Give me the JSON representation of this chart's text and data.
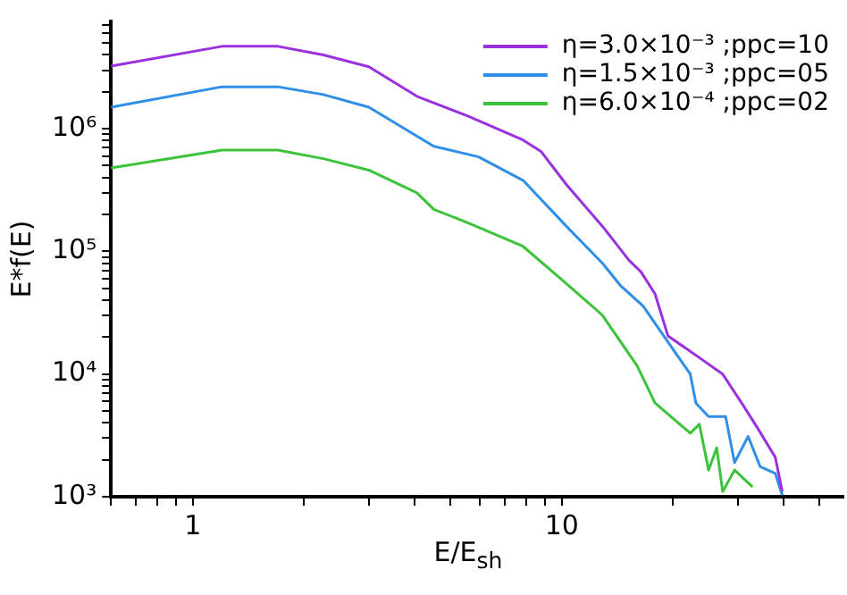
{
  "chart_data": {
    "type": "line",
    "xlabel": "E/E$_{sh}$",
    "ylabel": "E*f(E)",
    "log": "xy",
    "legend": "top right",
    "marker": "none",
    "line_style": "solid",
    "grid": false,
    "xlim": [
      0.6,
      58
    ],
    "ylim": [
      1000,
      7500000
    ],
    "xticks": [
      {
        "value": 0.6,
        "label": null
      },
      {
        "value": 0.7,
        "label": null
      },
      {
        "value": 0.8,
        "label": null
      },
      {
        "value": 0.9,
        "label": null
      },
      1,
      {
        "value": 2,
        "label": null
      },
      {
        "value": 3,
        "label": null
      },
      {
        "value": 4,
        "label": null
      },
      {
        "value": 5,
        "label": null
      },
      {
        "value": 6,
        "label": null
      },
      {
        "value": 7,
        "label": null
      },
      {
        "value": 8,
        "label": null
      },
      {
        "value": 9,
        "label": null
      },
      10,
      {
        "value": 20,
        "label": null
      },
      {
        "value": 30,
        "label": null
      },
      {
        "value": 40,
        "label": null
      },
      {
        "value": 50,
        "label": null
      }
    ],
    "yticks": [
      {
        "value": 1000,
        "label": "10³"
      },
      {
        "value": 2000,
        "label": null
      },
      {
        "value": 3000,
        "label": null
      },
      {
        "value": 4000,
        "label": null
      },
      {
        "value": 5000,
        "label": null
      },
      {
        "value": 6000,
        "label": null
      },
      {
        "value": 7000,
        "label": null
      },
      {
        "value": 8000,
        "label": null
      },
      {
        "value": 9000,
        "label": null
      },
      {
        "value": 10000,
        "label": "10⁴"
      },
      {
        "value": 20000,
        "label": null
      },
      {
        "value": 30000,
        "label": null
      },
      {
        "value": 40000,
        "label": null
      },
      {
        "value": 50000,
        "label": null
      },
      {
        "value": 60000,
        "label": null
      },
      {
        "value": 70000,
        "label": null
      },
      {
        "value": 80000,
        "label": null
      },
      {
        "value": 90000,
        "label": null
      },
      {
        "value": 100000,
        "label": "10⁵"
      },
      {
        "value": 200000,
        "label": null
      },
      {
        "value": 300000,
        "label": null
      },
      {
        "value": 400000,
        "label": null
      },
      {
        "value": 500000,
        "label": null
      },
      {
        "value": 600000,
        "label": null
      },
      {
        "value": 700000,
        "label": null
      },
      {
        "value": 800000,
        "label": null
      },
      {
        "value": 900000,
        "label": null
      },
      {
        "value": 1000000,
        "label": "10⁶"
      },
      {
        "value": 2000000,
        "label": null
      },
      {
        "value": 3000000,
        "label": null
      },
      {
        "value": 4000000,
        "label": null
      },
      {
        "value": 5000000,
        "label": null
      },
      {
        "value": 6000000,
        "label": null
      },
      {
        "value": 7000000,
        "label": null
      }
    ],
    "series": [
      {
        "name": "η=3.0×10⁻³ ;ppc=10",
        "color": "#9b30e0",
        "x": [
          0.6,
          1.2,
          1.7,
          2.26,
          3.0,
          4.05,
          5.6,
          7.85,
          8.8,
          10.3,
          12.9,
          15.2,
          16.4,
          17.9,
          19.4,
          23.6,
          27.3,
          31.1,
          34.0,
          37.9,
          39.6
        ],
        "values": [
          3240000,
          4700000,
          4700000,
          4000000,
          3200000,
          1840000,
          1260000,
          810000,
          650000,
          350000,
          160000,
          85000,
          68000,
          45000,
          20500,
          13600,
          10000,
          5500,
          3600,
          2100,
          1100
        ]
      },
      {
        "name": "η=1.5×10⁻³ ;ppc=05",
        "color": "#2f8fe8",
        "x": [
          0.6,
          1.2,
          1.7,
          2.26,
          3.0,
          4.5,
          5.95,
          7.85,
          10.3,
          12.9,
          14.4,
          16.6,
          20,
          22.3,
          23.1,
          25,
          27.8,
          29.4,
          32,
          34.5,
          37.9,
          39.6
        ],
        "values": [
          1500000,
          2200000,
          2200000,
          1900000,
          1500000,
          720000,
          590000,
          380000,
          160000,
          80000,
          53000,
          36000,
          16000,
          10000,
          5800,
          4500,
          4500,
          1900,
          3100,
          1760,
          1550,
          1030
        ]
      },
      {
        "name": "η=6.0×10⁻⁴ ;ppc=02",
        "color": "#3cc33c",
        "x": [
          0.6,
          1.2,
          1.7,
          2.26,
          3.0,
          4.05,
          4.5,
          5.6,
          7.85,
          9.8,
          12.2,
          12.9,
          16,
          17.9,
          22.3,
          23.6,
          25,
          26.3,
          27.3,
          29.4,
          32.9
        ],
        "values": [
          480000,
          670000,
          670000,
          570000,
          460000,
          300000,
          220000,
          170000,
          110000,
          62000,
          35000,
          30000,
          11700,
          5800,
          3300,
          3900,
          1650,
          2500,
          1100,
          1650,
          1200
        ]
      }
    ]
  }
}
